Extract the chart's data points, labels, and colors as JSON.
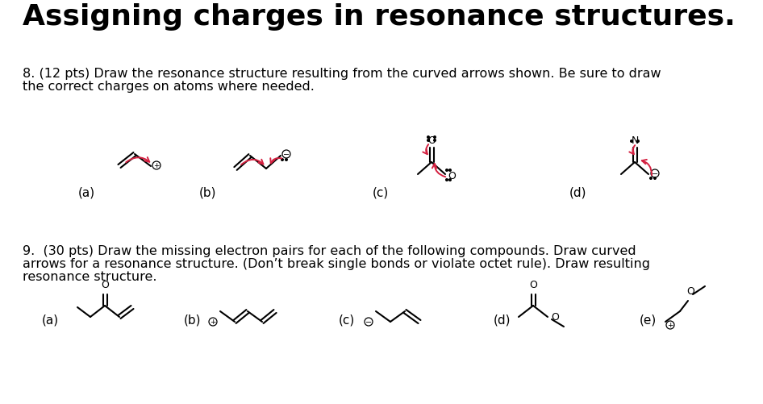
{
  "title": "Assigning charges in resonance structures.",
  "q8_line1": "8. (12 pts) Draw the resonance structure resulting from the curved arrows shown. Be sure to draw",
  "q8_line2": "the correct charges on atoms where needed.",
  "q9_line1": "9.  (30 pts) Draw the missing electron pairs for each of the following compounds. Draw curved",
  "q9_line2": "arrows for a resonance structure. (Don’t break single bonds or violate octet rule). Draw resulting",
  "q9_line3": "resonance structure.",
  "bg": "#ffffff",
  "black": "#000000",
  "red": "#d42040"
}
